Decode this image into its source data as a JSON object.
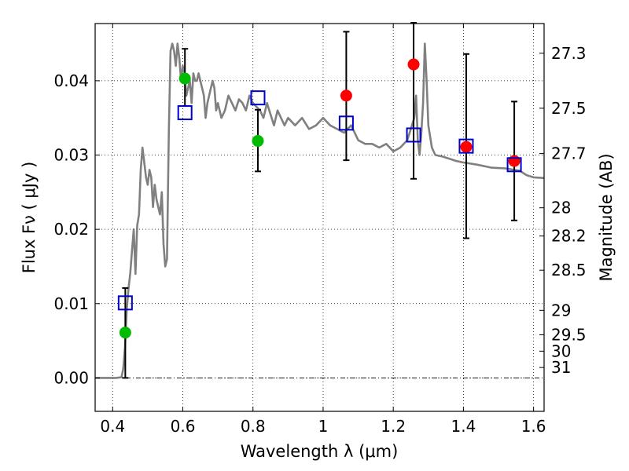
{
  "chart_data": {
    "type": "scatter",
    "xlabel": "Wavelength  λ (μm)",
    "ylabel": "Flux  Fν  ( μJy )",
    "y2label": "Magnitude (AB)",
    "xlim": [
      0.35,
      1.63
    ],
    "ylim": [
      -0.0045,
      0.0477
    ],
    "grid": true,
    "x_ticks": [
      0.4,
      0.6,
      0.8,
      1.0,
      1.2,
      1.4,
      1.6
    ],
    "x_tick_labels": [
      "0.4",
      "0.6",
      "0.8",
      "1",
      "1.2",
      "1.4",
      "1.6"
    ],
    "y_ticks": [
      0.0,
      0.01,
      0.02,
      0.03,
      0.04
    ],
    "y_tick_labels": [
      "0.00",
      "0.01",
      "0.02",
      "0.03",
      "0.04"
    ],
    "mag_ticks": [
      {
        "label": "27.3",
        "flux": 0.0437
      },
      {
        "label": "27.5",
        "flux": 0.0363
      },
      {
        "label": "27.7",
        "flux": 0.0302
      },
      {
        "label": "28",
        "flux": 0.0229
      },
      {
        "label": "28.2",
        "flux": 0.0191
      },
      {
        "label": "28.5",
        "flux": 0.0145
      },
      {
        "label": "29",
        "flux": 0.0091
      },
      {
        "label": "29.5",
        "flux": 0.0058
      },
      {
        "label": "30",
        "flux": 0.0036
      },
      {
        "label": "31",
        "flux": 0.0014
      }
    ],
    "series": [
      {
        "kind": "line",
        "color": "#808080",
        "x": [
          0.35,
          0.41,
          0.425,
          0.43,
          0.435,
          0.44,
          0.445,
          0.45,
          0.455,
          0.46,
          0.465,
          0.47,
          0.475,
          0.48,
          0.485,
          0.49,
          0.495,
          0.5,
          0.505,
          0.51,
          0.515,
          0.52,
          0.525,
          0.53,
          0.535,
          0.54,
          0.545,
          0.55,
          0.555,
          0.56,
          0.565,
          0.57,
          0.575,
          0.58,
          0.585,
          0.59,
          0.595,
          0.6,
          0.605,
          0.61,
          0.615,
          0.62,
          0.625,
          0.63,
          0.635,
          0.64,
          0.645,
          0.65,
          0.655,
          0.66,
          0.665,
          0.67,
          0.675,
          0.68,
          0.685,
          0.69,
          0.695,
          0.7,
          0.71,
          0.72,
          0.73,
          0.74,
          0.75,
          0.76,
          0.77,
          0.78,
          0.79,
          0.8,
          0.81,
          0.82,
          0.83,
          0.84,
          0.85,
          0.86,
          0.87,
          0.88,
          0.89,
          0.9,
          0.92,
          0.94,
          0.96,
          0.98,
          1.0,
          1.02,
          1.04,
          1.06,
          1.08,
          1.1,
          1.12,
          1.14,
          1.16,
          1.18,
          1.2,
          1.22,
          1.24,
          1.26,
          1.265,
          1.27,
          1.275,
          1.28,
          1.285,
          1.29,
          1.295,
          1.3,
          1.31,
          1.32,
          1.34,
          1.36,
          1.38,
          1.4,
          1.44,
          1.48,
          1.52,
          1.56,
          1.58,
          1.6,
          1.63
        ],
        "y": [
          0.0,
          0.0,
          0.0001,
          0.0012,
          0.004,
          0.009,
          0.012,
          0.014,
          0.017,
          0.02,
          0.014,
          0.0205,
          0.022,
          0.028,
          0.031,
          0.029,
          0.027,
          0.026,
          0.028,
          0.027,
          0.023,
          0.026,
          0.024,
          0.023,
          0.022,
          0.025,
          0.018,
          0.015,
          0.016,
          0.033,
          0.044,
          0.045,
          0.044,
          0.042,
          0.045,
          0.043,
          0.04,
          0.042,
          0.041,
          0.038,
          0.039,
          0.04,
          0.037,
          0.041,
          0.04,
          0.04,
          0.041,
          0.04,
          0.039,
          0.038,
          0.035,
          0.037,
          0.038,
          0.039,
          0.04,
          0.039,
          0.036,
          0.037,
          0.035,
          0.036,
          0.038,
          0.037,
          0.036,
          0.0375,
          0.037,
          0.036,
          0.038,
          0.037,
          0.0365,
          0.036,
          0.035,
          0.037,
          0.0355,
          0.034,
          0.036,
          0.035,
          0.034,
          0.035,
          0.034,
          0.035,
          0.0335,
          0.034,
          0.035,
          0.034,
          0.0335,
          0.033,
          0.034,
          0.032,
          0.0315,
          0.0315,
          0.031,
          0.0315,
          0.0305,
          0.031,
          0.032,
          0.035,
          0.038,
          0.032,
          0.03,
          0.033,
          0.037,
          0.045,
          0.04,
          0.034,
          0.031,
          0.03,
          0.0298,
          0.0295,
          0.0292,
          0.029,
          0.0287,
          0.0283,
          0.0282,
          0.0279,
          0.0273,
          0.027,
          0.0269
        ]
      },
      {
        "kind": "errorbar",
        "color": "#000000",
        "x": [
          0.436,
          0.606,
          0.814,
          1.066,
          1.258,
          1.408,
          1.545
        ],
        "low": [
          0.0,
          0.0366,
          0.0278,
          0.0293,
          0.0268,
          0.0188,
          0.0212
        ],
        "high": [
          0.0121,
          0.0443,
          0.0361,
          0.0466,
          0.0478,
          0.0436,
          0.0372
        ]
      },
      {
        "kind": "marker",
        "color": "#00bb00",
        "shape": "circle",
        "x": [
          0.436,
          0.606,
          0.814
        ],
        "y": [
          0.0061,
          0.0403,
          0.0319
        ]
      },
      {
        "kind": "marker",
        "color": "#ff0000",
        "shape": "circle",
        "x": [
          1.066,
          1.258,
          1.408,
          1.545
        ],
        "y": [
          0.038,
          0.0422,
          0.0311,
          0.0292
        ]
      },
      {
        "kind": "marker",
        "color": "#0000cc",
        "shape": "open-square",
        "x": [
          0.436,
          0.606,
          0.814,
          1.066,
          1.258,
          1.408,
          1.545
        ],
        "y": [
          0.0101,
          0.0357,
          0.0377,
          0.0343,
          0.0327,
          0.0312,
          0.0287
        ]
      }
    ]
  }
}
